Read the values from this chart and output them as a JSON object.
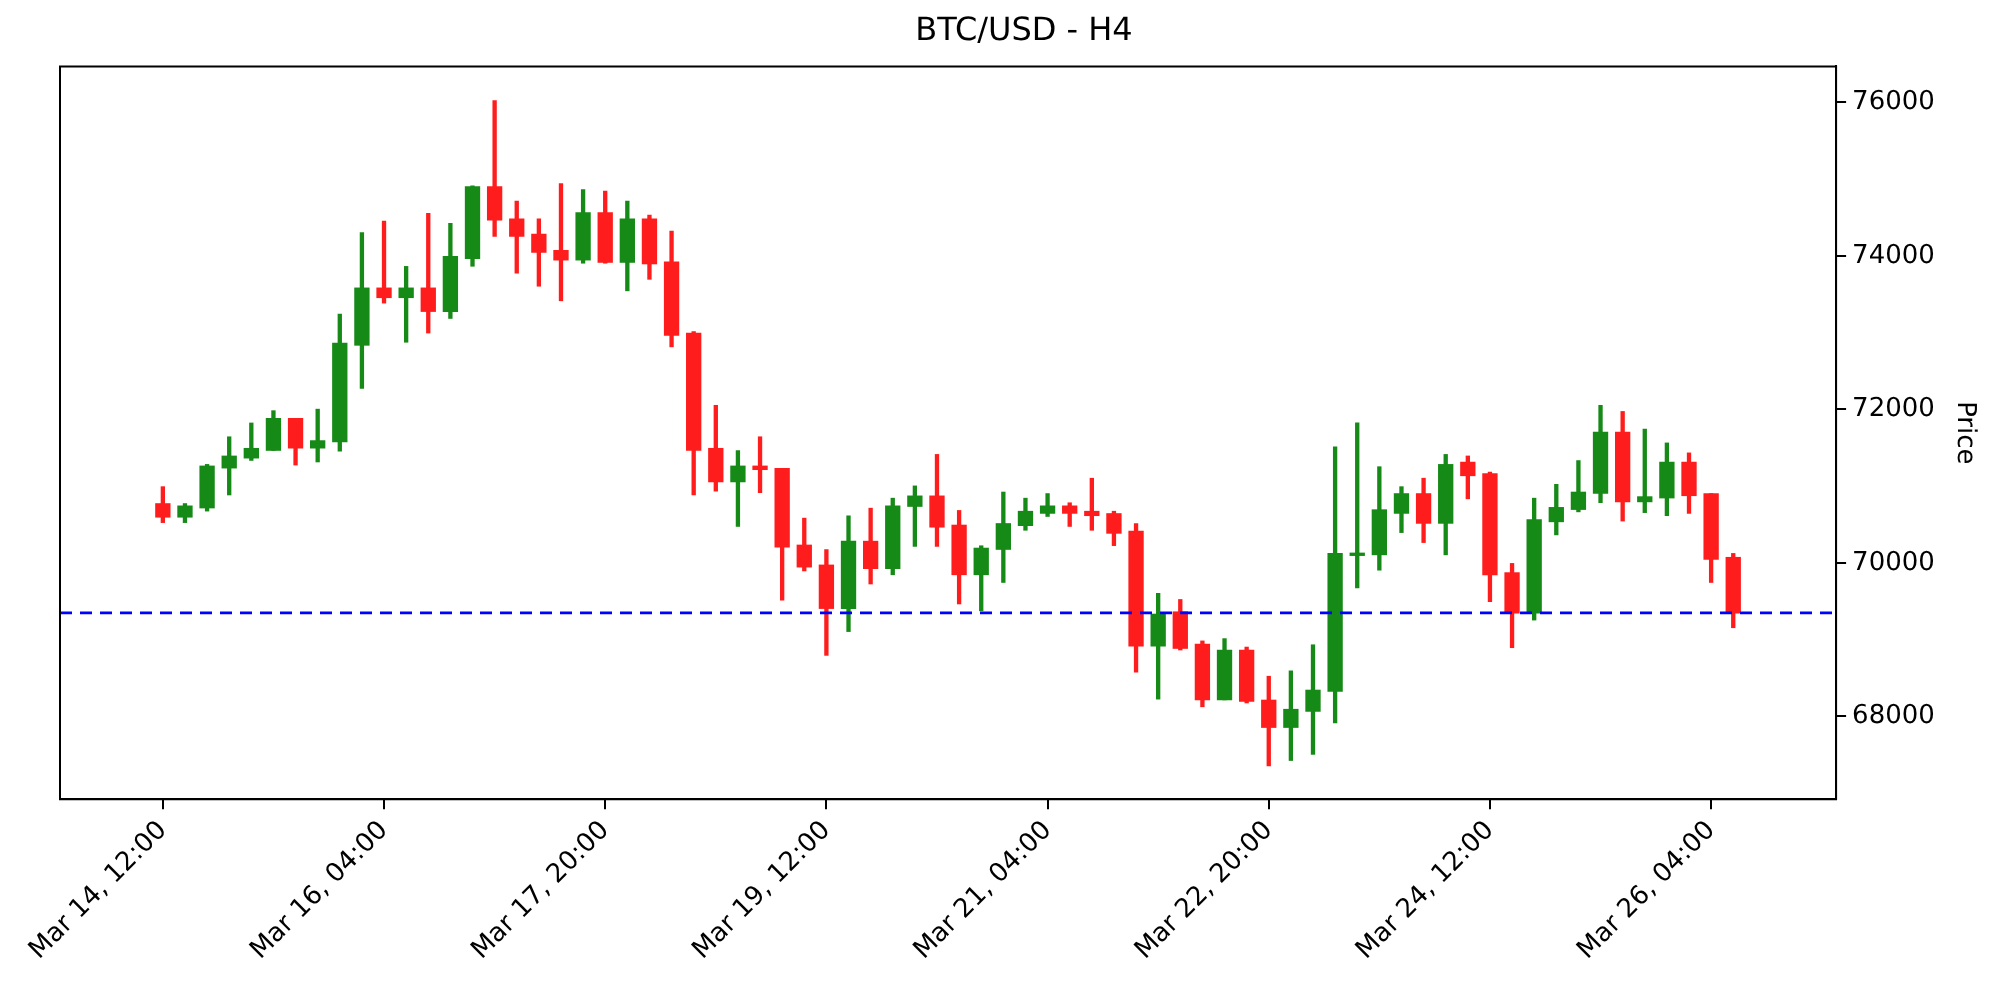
{
  "chart_data": {
    "type": "candlestick",
    "title": "BTC/USD - H4",
    "ylabel": "Price",
    "x": [
      "--03-14T12:00",
      "--03-14T16:00",
      "--03-14T20:00",
      "--03-15T00:00",
      "--03-15T04:00",
      "--03-15T08:00",
      "--03-15T12:00",
      "--03-15T16:00",
      "--03-15T20:00",
      "--03-16T00:00",
      "--03-16T04:00",
      "--03-16T08:00",
      "--03-16T12:00",
      "--03-16T16:00",
      "--03-16T20:00",
      "--03-17T00:00",
      "--03-17T04:00",
      "--03-17T08:00",
      "--03-17T12:00",
      "--03-17T16:00",
      "--03-17T20:00",
      "--03-18T00:00",
      "--03-18T04:00",
      "--03-18T08:00",
      "--03-18T12:00",
      "--03-18T16:00",
      "--03-18T20:00",
      "--03-19T00:00",
      "--03-19T04:00",
      "--03-19T08:00",
      "--03-19T12:00",
      "--03-19T16:00",
      "--03-19T20:00",
      "--03-20T00:00",
      "--03-20T04:00",
      "--03-20T08:00",
      "--03-20T12:00",
      "--03-20T16:00",
      "--03-20T20:00",
      "--03-21T00:00",
      "--03-21T04:00",
      "--03-21T08:00",
      "--03-21T12:00",
      "--03-21T16:00",
      "--03-21T20:00",
      "--03-22T00:00",
      "--03-22T04:00",
      "--03-22T08:00",
      "--03-22T12:00",
      "--03-22T16:00",
      "--03-22T20:00",
      "--03-23T00:00",
      "--03-23T04:00",
      "--03-23T08:00",
      "--03-23T12:00",
      "--03-23T16:00",
      "--03-23T20:00",
      "--03-24T00:00",
      "--03-24T04:00",
      "--03-24T08:00",
      "--03-24T12:00",
      "--03-24T16:00",
      "--03-24T20:00",
      "--03-25T00:00",
      "--03-25T04:00",
      "--03-25T08:00",
      "--03-25T12:00",
      "--03-25T16:00",
      "--03-25T20:00",
      "--03-26T00:00",
      "--03-26T04:00",
      "--03-26T08:00"
    ],
    "ohlc": [
      [
        70770,
        70990,
        70530,
        70600
      ],
      [
        70600,
        70770,
        70530,
        70740
      ],
      [
        70720,
        71280,
        70680,
        71260
      ],
      [
        71240,
        71640,
        70890,
        71390
      ],
      [
        71370,
        71820,
        71340,
        71490
      ],
      [
        71470,
        71980,
        71470,
        71880
      ],
      [
        71880,
        71880,
        71280,
        71500
      ],
      [
        71500,
        72000,
        71320,
        71590
      ],
      [
        71580,
        73240,
        71460,
        72860
      ],
      [
        72840,
        74300,
        72280,
        73580
      ],
      [
        73580,
        74450,
        73390,
        73460
      ],
      [
        73460,
        73860,
        72880,
        73580
      ],
      [
        73580,
        74550,
        73000,
        73280
      ],
      [
        73280,
        74420,
        73190,
        73990
      ],
      [
        73970,
        74910,
        73870,
        74900
      ],
      [
        74900,
        76020,
        74260,
        74470
      ],
      [
        74480,
        74710,
        73780,
        74260
      ],
      [
        74280,
        74480,
        73610,
        74050
      ],
      [
        74070,
        74940,
        73420,
        73950
      ],
      [
        73950,
        74860,
        73910,
        74560
      ],
      [
        74560,
        74840,
        73910,
        73920
      ],
      [
        73920,
        74710,
        73550,
        74480
      ],
      [
        74480,
        74530,
        73700,
        73900
      ],
      [
        73920,
        74320,
        72820,
        72970
      ],
      [
        72990,
        73010,
        70890,
        71470
      ],
      [
        71490,
        72050,
        70940,
        71060
      ],
      [
        71060,
        71460,
        70480,
        71260
      ],
      [
        71260,
        71640,
        70920,
        71220
      ],
      [
        71230,
        71230,
        69520,
        70210
      ],
      [
        70230,
        70580,
        69900,
        69950
      ],
      [
        69970,
        70170,
        68800,
        69410
      ],
      [
        69410,
        70610,
        69110,
        70280
      ],
      [
        70280,
        70710,
        69730,
        69930
      ],
      [
        69930,
        70840,
        69850,
        70740
      ],
      [
        70740,
        71000,
        70220,
        70870
      ],
      [
        70870,
        71410,
        70220,
        70470
      ],
      [
        70490,
        70680,
        69470,
        69850
      ],
      [
        69850,
        70220,
        69380,
        70190
      ],
      [
        70180,
        70920,
        69750,
        70510
      ],
      [
        70490,
        70840,
        70430,
        70670
      ],
      [
        70650,
        70900,
        70610,
        70740
      ],
      [
        70740,
        70780,
        70480,
        70650
      ],
      [
        70670,
        71100,
        70430,
        70620
      ],
      [
        70640,
        70670,
        70230,
        70390
      ],
      [
        70410,
        70510,
        68580,
        68920
      ],
      [
        68920,
        69600,
        68230,
        69330
      ],
      [
        69360,
        69520,
        68870,
        68890
      ],
      [
        68940,
        68980,
        68130,
        68220
      ],
      [
        68220,
        69010,
        68220,
        68860
      ],
      [
        68860,
        68900,
        68180,
        68200
      ],
      [
        68210,
        68520,
        67360,
        67860
      ],
      [
        67860,
        68590,
        67430,
        68090
      ],
      [
        68070,
        68930,
        67510,
        68340
      ],
      [
        68330,
        71510,
        67920,
        70120
      ],
      [
        70100,
        71820,
        69680,
        70120
      ],
      [
        70110,
        71250,
        69910,
        70690
      ],
      [
        70650,
        70990,
        70400,
        70900
      ],
      [
        70900,
        71100,
        70270,
        70520
      ],
      [
        70520,
        71410,
        70110,
        71280
      ],
      [
        71310,
        71390,
        70840,
        71140
      ],
      [
        71160,
        71180,
        69500,
        69850
      ],
      [
        69870,
        69990,
        68900,
        69350
      ],
      [
        69350,
        70840,
        69260,
        70560
      ],
      [
        70540,
        71020,
        70370,
        70720
      ],
      [
        70700,
        71330,
        70670,
        70920
      ],
      [
        70910,
        72050,
        70790,
        71700
      ],
      [
        71700,
        71970,
        70550,
        70800
      ],
      [
        70800,
        71740,
        70660,
        70860
      ],
      [
        70850,
        71560,
        70620,
        71310
      ],
      [
        71310,
        71430,
        70650,
        70880
      ],
      [
        70900,
        70900,
        69750,
        70050
      ],
      [
        70070,
        70120,
        69160,
        69350
      ]
    ],
    "colors": [
      "#ff1c1c",
      "#168a16",
      "#168a16",
      "#168a16",
      "#168a16",
      "#168a16",
      "#ff1c1c",
      "#168a16",
      "#168a16",
      "#168a16",
      "#ff1c1c",
      "#168a16",
      "#ff1c1c",
      "#168a16",
      "#168a16",
      "#ff1c1c",
      "#ff1c1c",
      "#ff1c1c",
      "#ff1c1c",
      "#168a16",
      "#ff1c1c",
      "#168a16",
      "#ff1c1c",
      "#ff1c1c",
      "#ff1c1c",
      "#ff1c1c",
      "#168a16",
      "#ff1c1c",
      "#ff1c1c",
      "#ff1c1c",
      "#ff1c1c",
      "#168a16",
      "#ff1c1c",
      "#168a16",
      "#168a16",
      "#ff1c1c",
      "#ff1c1c",
      "#168a16",
      "#168a16",
      "#168a16",
      "#168a16",
      "#ff1c1c",
      "#ff1c1c",
      "#ff1c1c",
      "#ff1c1c",
      "#168a16",
      "#ff1c1c",
      "#ff1c1c",
      "#168a16",
      "#ff1c1c",
      "#ff1c1c",
      "#168a16",
      "#168a16",
      "#168a16",
      "#168a16",
      "#168a16",
      "#168a16",
      "#ff1c1c",
      "#168a16",
      "#ff1c1c",
      "#ff1c1c",
      "#ff1c1c",
      "#168a16",
      "#168a16",
      "#168a16",
      "#168a16",
      "#ff1c1c",
      "#168a16",
      "#168a16",
      "#ff1c1c",
      "#ff1c1c",
      "#ff1c1c"
    ],
    "xlim": [
      "--03-13T17:24",
      "--03-27T02:36"
    ],
    "xticks": [
      {
        "value": "--03-14T12:00",
        "label": "Mar 14, 12:00"
      },
      {
        "value": "--03-16T04:00",
        "label": "Mar 16, 04:00"
      },
      {
        "value": "--03-17T20:00",
        "label": "Mar 17, 20:00"
      },
      {
        "value": "--03-19T12:00",
        "label": "Mar 19, 12:00"
      },
      {
        "value": "--03-21T04:00",
        "label": "Mar 21, 04:00"
      },
      {
        "value": "--03-22T20:00",
        "label": "Mar 22, 20:00"
      },
      {
        "value": "--03-24T12:00",
        "label": "Mar 24, 12:00"
      },
      {
        "value": "--03-26T04:00",
        "label": "Mar 26, 04:00"
      }
    ],
    "ylim": [
      66920,
      76470
    ],
    "yticks": [
      68000,
      70000,
      72000,
      74000,
      76000
    ],
    "ref_lines": [
      {
        "axis": "y",
        "value": 69350,
        "color": "#0000ff",
        "line_style": "dashed"
      }
    ],
    "grid": false,
    "legend": false
  }
}
